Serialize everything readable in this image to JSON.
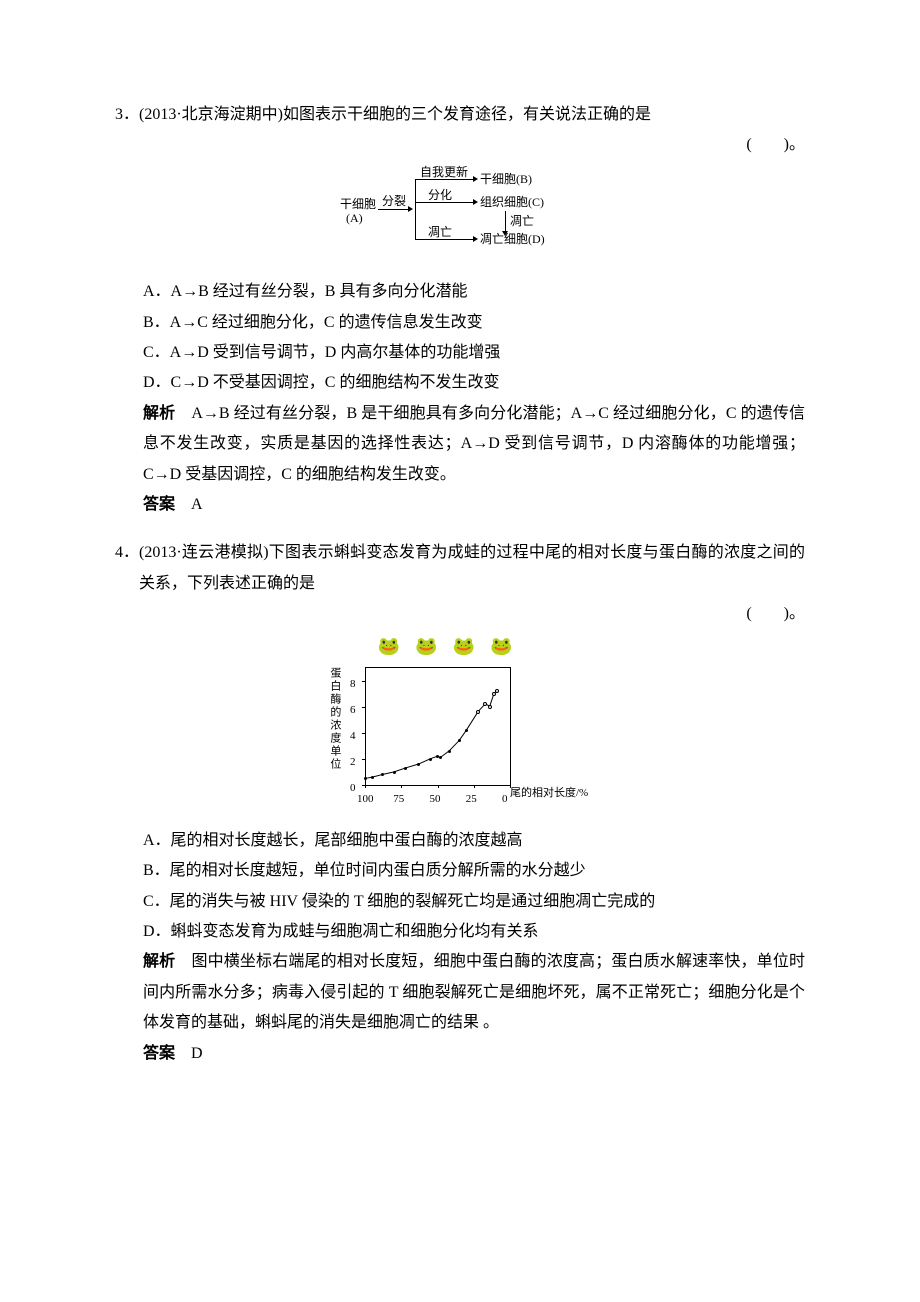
{
  "q3": {
    "number": "3．",
    "source": "(2013·北京海淀期中)",
    "stem": "如图表示干细胞的三个发育途径，有关说法正确的是",
    "paren": "(　　)。",
    "diagram": {
      "ganxibao": "干细胞",
      "A": "(A)",
      "fenlie": "分裂",
      "ziwogengxin": "自我更新",
      "fenhua": "分化",
      "diaowang": "凋亡",
      "ganxibaoB": "干细胞(B)",
      "zuzhixibaoC": "组织细胞(C)",
      "diaowang2": "凋亡",
      "diaowangxibaoD": "凋亡细胞(D)"
    },
    "options": {
      "A": "A．A→B 经过有丝分裂，B 具有多向分化潜能",
      "B": "B．A→C 经过细胞分化，C 的遗传信息发生改变",
      "C": "C．A→D 受到信号调节，D 内高尔基体的功能增强",
      "D": "D．C→D 不受基因调控，C 的细胞结构不发生改变"
    },
    "analysis_label": "解析",
    "analysis": "　A→B 经过有丝分裂，B 是干细胞具有多向分化潜能；A→C 经过细胞分化，C 的遗传信息不发生改变，实质是基因的选择性表达；A→D 受到信号调节，D 内溶酶体的功能增强；C→D 受基因调控，C 的细胞结构发生改变。",
    "answer_label": "答案",
    "answer": "　A"
  },
  "q4": {
    "number": "4．",
    "source": "(2013·连云港模拟)",
    "stem": "下图表示蝌蚪变态发育为成蛙的过程中尾的相对长度与蛋白酶的浓度之间的关系，下列表述正确的是",
    "paren": "(　　)。",
    "chart": {
      "ylabel": "蛋白酶的浓度单位",
      "xlabel": "尾的相对长度/%",
      "yticks": [
        "0",
        "2",
        "4",
        "6",
        "8"
      ],
      "xticks": [
        "100",
        "75",
        "50",
        "25",
        "0"
      ],
      "ylim": [
        0,
        9
      ],
      "xlim_labels": [
        100,
        75,
        50,
        25,
        0
      ],
      "solid_points": [
        [
          100,
          0.5
        ],
        [
          95,
          0.6
        ],
        [
          88,
          0.8
        ],
        [
          80,
          1.0
        ],
        [
          72,
          1.3
        ],
        [
          63,
          1.6
        ],
        [
          55,
          2.0
        ],
        [
          50,
          2.2
        ],
        [
          48,
          2.1
        ],
        [
          42,
          2.6
        ],
        [
          35,
          3.4
        ],
        [
          30,
          4.2
        ]
      ],
      "open_points": [
        [
          22,
          5.6
        ],
        [
          17,
          6.2
        ],
        [
          14,
          6.0
        ],
        [
          11,
          7.0
        ],
        [
          9,
          7.2
        ]
      ],
      "axis_color": "#000000",
      "bg": "#ffffff"
    },
    "options": {
      "A": "A．尾的相对长度越长，尾部细胞中蛋白酶的浓度越高",
      "B": "B．尾的相对长度越短，单位时间内蛋白质分解所需的水分越少",
      "C": "C．尾的消失与被 HIV 侵染的 T 细胞的裂解死亡均是通过细胞凋亡完成的",
      "D": "D．蝌蚪变态发育为成蛙与细胞凋亡和细胞分化均有关系"
    },
    "analysis_label": "解析",
    "analysis": "　图中横坐标右端尾的相对长度短，细胞中蛋白酶的浓度高；蛋白质水解速率快，单位时间内所需水分多；病毒入侵引起的 T 细胞裂解死亡是细胞坏死，属不正常死亡；细胞分化是个体发育的基础，蝌蚪尾的消失是细胞凋亡的结果 。",
    "answer_label": "答案",
    "answer": "　D"
  }
}
